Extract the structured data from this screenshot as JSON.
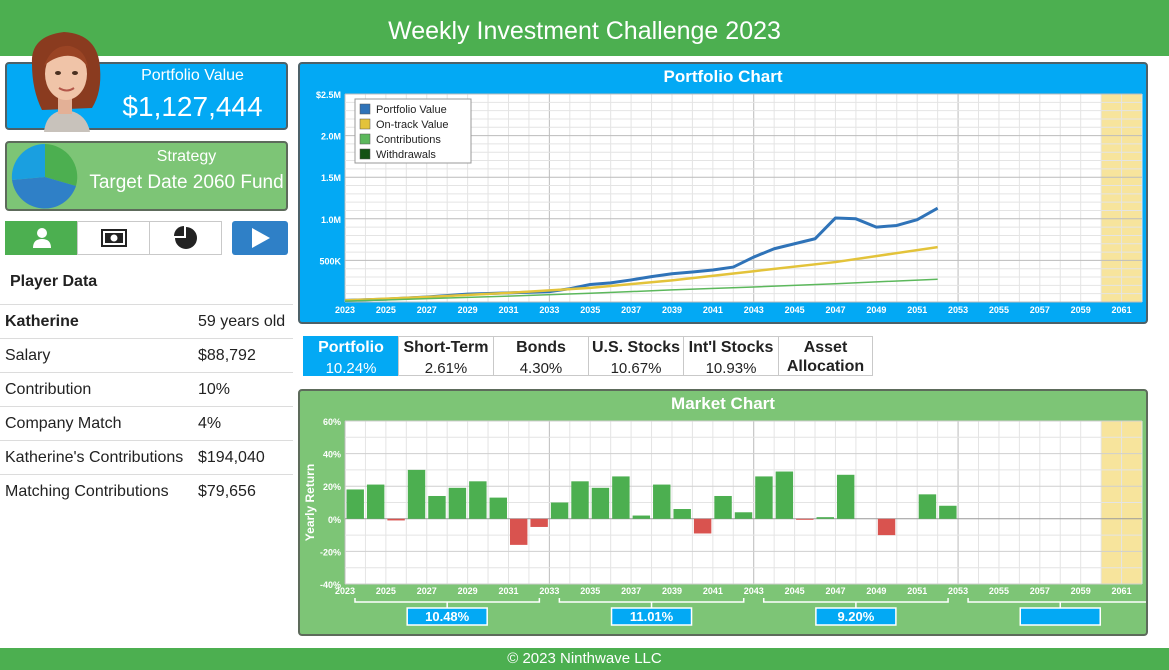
{
  "header": {
    "title": "Weekly Investment Challenge 2023"
  },
  "portfolio": {
    "label": "Portfolio Value",
    "value": "$1,127,444"
  },
  "strategy": {
    "label": "Strategy",
    "value": "Target Date 2060 Fund",
    "pie_colors": [
      "#4caf50",
      "#2f80c7",
      "#1a9fe0"
    ]
  },
  "nav": {
    "tabs": [
      "player-icon",
      "money-icon",
      "pie-chart-icon"
    ],
    "active": 0,
    "play": "play-icon"
  },
  "player": {
    "title": "Player Data",
    "rows": [
      {
        "k": "Katherine",
        "v": "59 years old"
      },
      {
        "k": "Salary",
        "v": "$88,792"
      },
      {
        "k": "Contribution",
        "v": "10%"
      },
      {
        "k": "Company Match",
        "v": "4%"
      },
      {
        "k": "Katherine's Contributions",
        "v": "$194,040"
      },
      {
        "k": "Matching Contributions",
        "v": "$79,656"
      }
    ]
  },
  "returns_tabs": [
    {
      "name": "Portfolio",
      "pct": "10.24%"
    },
    {
      "name": "Short-Term",
      "pct": "2.61%"
    },
    {
      "name": "Bonds",
      "pct": "4.30%"
    },
    {
      "name": "U.S. Stocks",
      "pct": "10.67%"
    },
    {
      "name": "Int'l Stocks",
      "pct": "10.93%"
    },
    {
      "name": "Asset",
      "name2": "Allocation"
    }
  ],
  "footer": {
    "text": "© 2023 Ninthwave LLC"
  },
  "colors": {
    "green": "#4caf50",
    "blue": "#03a9f4",
    "portfolio_line": "#2f73b8",
    "ontrack_line": "#e3c33a",
    "contrib_line": "#5cb85c",
    "withdrawals": "#145214",
    "neg_bar": "#d9534f",
    "future_band": "#f7e49c"
  },
  "chart_data": [
    {
      "type": "line",
      "title": "Portfolio Chart",
      "ylim": [
        0,
        2500000
      ],
      "ytick_labels": [
        "$2.5M",
        "2.0M",
        "1.5M",
        "1.0M",
        "500K"
      ],
      "xtick_labels": [
        "2023",
        "2025",
        "2027",
        "2029",
        "2031",
        "2033",
        "2035",
        "2037",
        "2039",
        "2041",
        "2043",
        "2045",
        "2047",
        "2049",
        "2051",
        "2053",
        "2055",
        "2057",
        "2059",
        "2061"
      ],
      "xlim": [
        2023,
        2062
      ],
      "future_band": [
        2060,
        2062
      ],
      "legend": [
        "Portfolio Value",
        "On-track Value",
        "Contributions",
        "Withdrawals"
      ],
      "legend_placement": "top-left",
      "grid": true,
      "series": [
        {
          "name": "Portfolio Value",
          "x": [
            2023,
            2025,
            2027,
            2029,
            2031,
            2033,
            2034,
            2035,
            2036,
            2037,
            2038,
            2039,
            2040,
            2041,
            2042,
            2043,
            2044,
            2045,
            2046,
            2047,
            2048,
            2049,
            2050,
            2051,
            2052
          ],
          "y": [
            20000,
            35000,
            60000,
            95000,
            110000,
            125000,
            160000,
            210000,
            230000,
            265000,
            305000,
            340000,
            360000,
            385000,
            420000,
            540000,
            640000,
            700000,
            760000,
            1010000,
            1000000,
            900000,
            920000,
            990000,
            1127444
          ]
        },
        {
          "name": "On-track Value",
          "x": [
            2023,
            2027,
            2031,
            2035,
            2039,
            2043,
            2047,
            2052
          ],
          "y": [
            20000,
            60000,
            110000,
            170000,
            260000,
            370000,
            480000,
            660000
          ]
        },
        {
          "name": "Contributions",
          "x": [
            2023,
            2027,
            2031,
            2035,
            2039,
            2043,
            2047,
            2052
          ],
          "y": [
            10000,
            40000,
            70000,
            105000,
            145000,
            180000,
            220000,
            274000
          ]
        }
      ]
    },
    {
      "type": "bar",
      "title": "Market Chart",
      "ylabel": "Yearly Return",
      "ylim": [
        -40,
        60
      ],
      "ytick_labels": [
        "60%",
        "40%",
        "20%",
        "0%",
        "-20%",
        "-40%"
      ],
      "xtick_labels": [
        "2023",
        "2025",
        "2027",
        "2029",
        "2031",
        "2033",
        "2035",
        "2037",
        "2039",
        "2041",
        "2043",
        "2045",
        "2047",
        "2049",
        "2051",
        "2053",
        "2055",
        "2057",
        "2059",
        "2061"
      ],
      "future_band": [
        2060,
        2062
      ],
      "grid": true,
      "categories": [
        2023,
        2024,
        2025,
        2026,
        2027,
        2028,
        2029,
        2030,
        2031,
        2032,
        2033,
        2034,
        2035,
        2036,
        2037,
        2038,
        2039,
        2040,
        2041,
        2042,
        2043,
        2044,
        2045,
        2046,
        2047,
        2048,
        2049,
        2050,
        2051,
        2052
      ],
      "values": [
        18,
        21,
        -1,
        30,
        14,
        19,
        23,
        13,
        -16,
        -5,
        10,
        23,
        19,
        26,
        2,
        21,
        6,
        -9,
        14,
        4,
        26,
        29,
        -0.5,
        1,
        27,
        0,
        -10,
        0,
        15,
        8
      ],
      "decade_averages": [
        "10.48%",
        "11.01%",
        "9.20%",
        ""
      ]
    }
  ]
}
